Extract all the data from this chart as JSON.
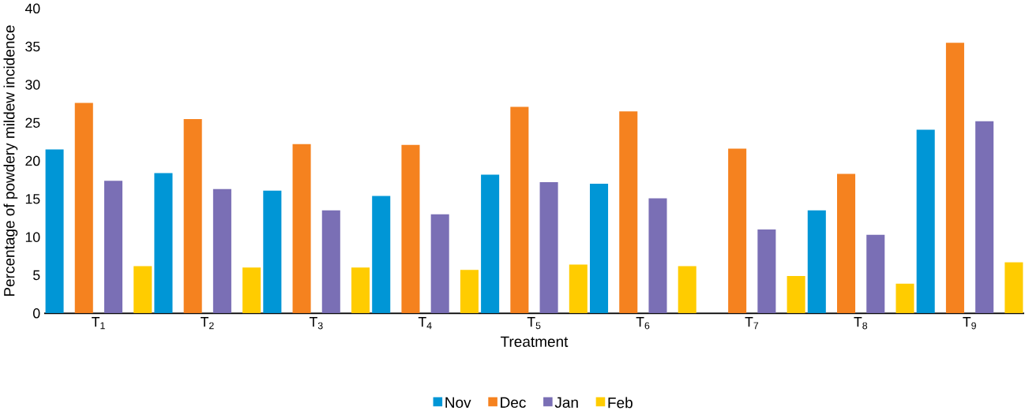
{
  "chart_data": {
    "type": "bar",
    "xlabel": "Treatment",
    "ylabel": "Percentage of powdery mildew incidence",
    "categories": [
      "T$_{1}$",
      "T$_{2}$",
      "T$_{3}$",
      "T$_{4}$",
      "T$_{5}$",
      "T$_{6}$",
      "T$_{7}$",
      "T$_{8}$",
      "T$_{9}$"
    ],
    "series": [
      {
        "name": "Nov",
        "color": "#0096d6",
        "values": [
          21.5,
          18.4,
          16.1,
          15.4,
          18.2,
          17.0,
          null,
          13.5,
          24.1
        ]
      },
      {
        "name": "Dec",
        "color": "#f5821f",
        "values": [
          27.6,
          25.5,
          22.2,
          22.1,
          27.1,
          26.5,
          21.6,
          18.3,
          35.5
        ]
      },
      {
        "name": "Jan",
        "color": "#7a6fb5",
        "values": [
          17.4,
          16.3,
          13.5,
          13.0,
          17.2,
          15.1,
          11.0,
          10.3,
          25.2
        ]
      },
      {
        "name": "Feb",
        "color": "#ffcc00",
        "values": [
          6.2,
          6.0,
          6.0,
          5.7,
          6.4,
          6.2,
          4.9,
          3.9,
          6.7
        ]
      }
    ],
    "ylim": [
      0,
      40
    ],
    "yticks": [
      0,
      5,
      10,
      15,
      20,
      25,
      30,
      35,
      40
    ],
    "grid": false,
    "legend": "bottom"
  }
}
